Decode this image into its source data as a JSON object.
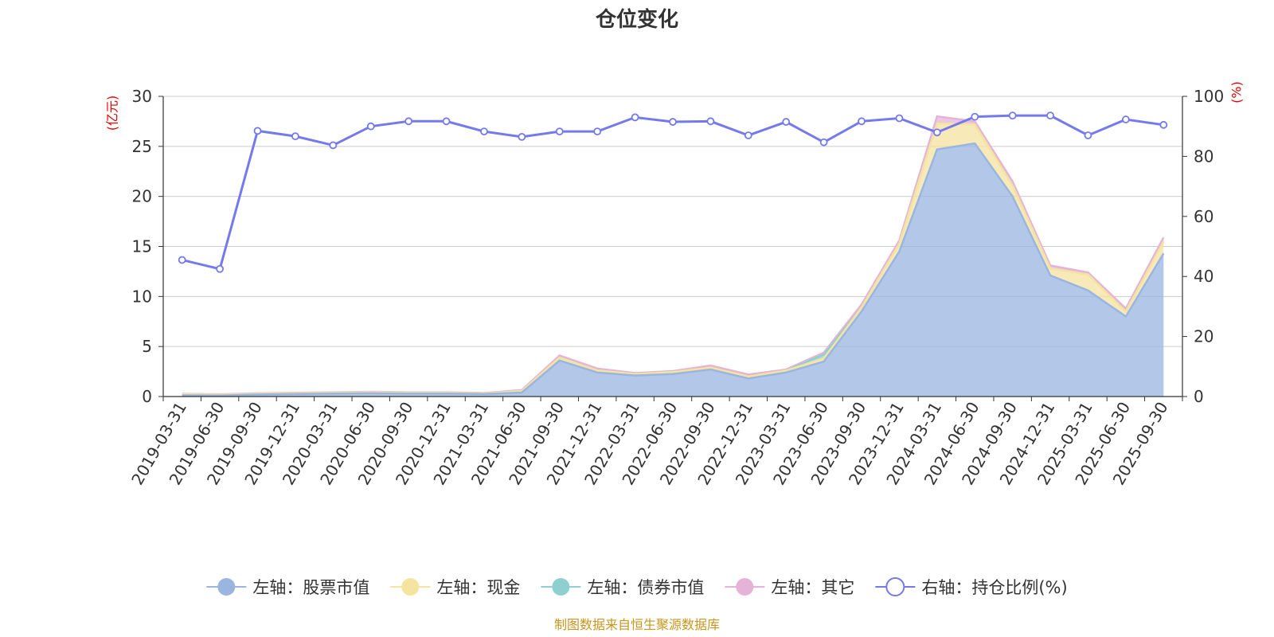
{
  "chart_data": {
    "type": "area",
    "title": "仓位变化",
    "left_axis_unit": "(亿元)",
    "right_axis_unit": "(%)",
    "ylim_left": [
      0,
      30
    ],
    "yticks_left": [
      0,
      5,
      10,
      15,
      20,
      25,
      30
    ],
    "ylim_right": [
      0,
      100
    ],
    "yticks_right": [
      0,
      20,
      40,
      60,
      80,
      100
    ],
    "categories": [
      "2019-03-31",
      "2019-06-30",
      "2019-09-30",
      "2019-12-31",
      "2020-03-31",
      "2020-06-30",
      "2020-09-30",
      "2020-12-31",
      "2021-03-31",
      "2021-06-30",
      "2021-09-30",
      "2021-12-31",
      "2022-03-31",
      "2022-06-30",
      "2022-09-30",
      "2022-12-31",
      "2023-03-31",
      "2023-06-30",
      "2023-09-30",
      "2023-12-31",
      "2024-03-31",
      "2024-06-30",
      "2024-09-30",
      "2024-12-31",
      "2025-03-31",
      "2025-06-30",
      "2025-09-30"
    ],
    "stacked_series": [
      {
        "name": "左轴：股票市值",
        "color": "#9ab5e0",
        "values": [
          0.12,
          0.1,
          0.2,
          0.25,
          0.3,
          0.33,
          0.3,
          0.3,
          0.25,
          0.4,
          3.6,
          2.4,
          2.1,
          2.25,
          2.7,
          1.8,
          2.4,
          3.5,
          8.5,
          14.5,
          24.7,
          25.3,
          20.0,
          12.1,
          10.6,
          8.0,
          14.3
        ]
      },
      {
        "name": "左轴：现金",
        "color": "#f5e3a0",
        "values": [
          0.1,
          0.08,
          0.08,
          0.08,
          0.08,
          0.1,
          0.08,
          0.08,
          0.06,
          0.15,
          0.3,
          0.2,
          0.15,
          0.2,
          0.2,
          0.2,
          0.2,
          0.3,
          0.4,
          0.8,
          2.6,
          1.9,
          1.1,
          0.7,
          1.6,
          0.5,
          1.2
        ]
      },
      {
        "name": "左轴：债券市值",
        "color": "#8ed0d0",
        "values": [
          0.0,
          0.0,
          0.0,
          0.0,
          0.0,
          0.0,
          0.0,
          0.0,
          0.0,
          0.0,
          0.0,
          0.0,
          0.0,
          0.0,
          0.0,
          0.0,
          0.0,
          0.4,
          0.0,
          0.0,
          0.0,
          0.0,
          0.0,
          0.0,
          0.0,
          0.0,
          0.0
        ]
      },
      {
        "name": "左轴：其它",
        "color": "#e6b3d8",
        "values": [
          0.05,
          0.05,
          0.05,
          0.05,
          0.05,
          0.05,
          0.05,
          0.05,
          0.05,
          0.1,
          0.2,
          0.2,
          0.1,
          0.1,
          0.2,
          0.2,
          0.1,
          0.2,
          0.3,
          0.3,
          0.7,
          0.3,
          0.4,
          0.3,
          0.2,
          0.3,
          0.4
        ]
      }
    ],
    "line_series": {
      "name": "右轴：持仓比例(%)",
      "color": "#7479ec",
      "values": [
        45.5,
        42.5,
        88.5,
        86.7,
        83.7,
        90.0,
        91.7,
        91.7,
        88.3,
        86.5,
        88.3,
        88.3,
        93.0,
        91.5,
        91.7,
        87.0,
        91.5,
        84.7,
        91.7,
        92.7,
        88.0,
        93.2,
        93.6,
        93.6,
        87.0,
        92.3,
        90.5
      ]
    },
    "legend": [
      "左轴：股票市值",
      "左轴：现金",
      "左轴：债券市值",
      "左轴：其它",
      "右轴：持仓比例(%)"
    ],
    "grid": true,
    "legend_position": "bottom"
  },
  "source_note": "制图数据来自恒生聚源数据库"
}
